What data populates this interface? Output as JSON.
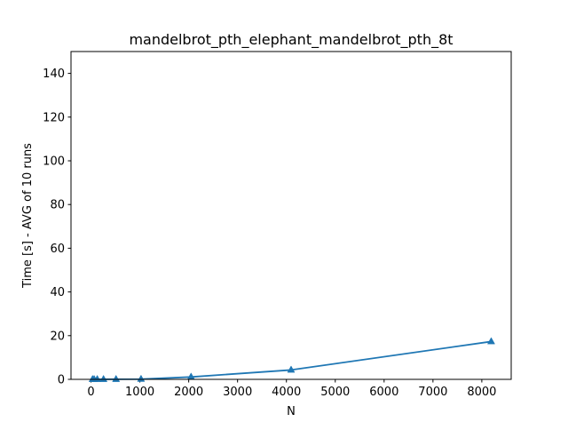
{
  "chart_data": {
    "type": "line",
    "title": "mandelbrot_pth_elephant_mandelbrot_pth_8t",
    "xlabel": "N",
    "ylabel": "Time [s] - AVG of 10 runs",
    "xlim": [
      -409.6,
      8601.6
    ],
    "ylim": [
      0,
      150
    ],
    "xticks": [
      0,
      1000,
      2000,
      3000,
      4000,
      5000,
      6000,
      7000,
      8000
    ],
    "yticks": [
      0,
      20,
      40,
      60,
      80,
      100,
      120,
      140
    ],
    "grid": false,
    "marker": "triangle",
    "series": [
      {
        "color": "#1f77b4",
        "x": [
          32,
          64,
          128,
          256,
          512,
          1024,
          2048,
          4096,
          8192
        ],
        "y": [
          0.01,
          0.01,
          0.01,
          0.02,
          0.04,
          0.1,
          1.1,
          4.3,
          17.3
        ]
      }
    ]
  }
}
